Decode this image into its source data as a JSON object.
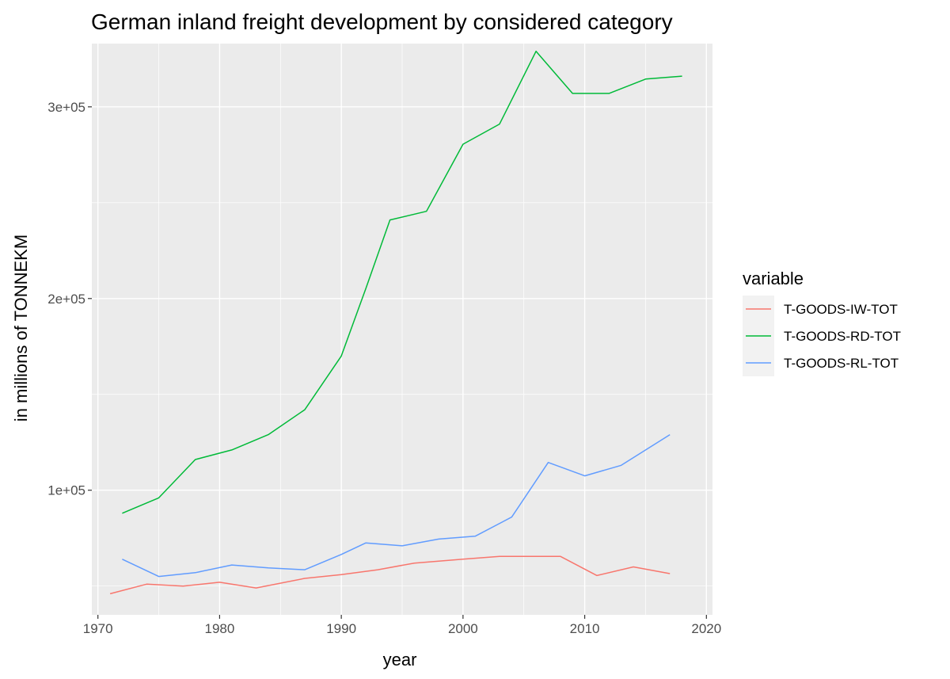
{
  "chart_data": {
    "type": "line",
    "title": "German inland freight development by considered category",
    "xlabel": "year",
    "ylabel": "in millions of TONNEKM",
    "xlim": [
      1969.5,
      2020.5
    ],
    "ylim": [
      35000,
      333000
    ],
    "x_ticks": [
      1970,
      1980,
      1990,
      2000,
      2010,
      2020
    ],
    "x_tick_labels": [
      "1970",
      "1980",
      "1990",
      "2000",
      "2010",
      "2020"
    ],
    "y_ticks": [
      100000,
      200000,
      300000
    ],
    "y_tick_labels": [
      "1e+05",
      "2e+05",
      "3e+05"
    ],
    "legend": {
      "title": "variable",
      "position": "right"
    },
    "series": [
      {
        "name": "T-GOODS-IW-TOT",
        "color": "#F8766D",
        "x": [
          1971,
          1974,
          1977,
          1980,
          1983,
          1987,
          1990,
          1993,
          1996,
          2000,
          2003,
          2005,
          2008,
          2011,
          2014,
          2017
        ],
        "y": [
          46000,
          51000,
          50000,
          52000,
          49000,
          54000,
          56000,
          58500,
          62000,
          64000,
          65500,
          65500,
          65500,
          55500,
          60000,
          56500
        ]
      },
      {
        "name": "T-GOODS-RD-TOT",
        "color": "#00BA38",
        "x": [
          1972,
          1975,
          1978,
          1981,
          1984,
          1987,
          1990,
          1992,
          1994,
          1997,
          2000,
          2003,
          2006,
          2009,
          2012,
          2015,
          2018
        ],
        "y": [
          88000,
          96000,
          116000,
          121000,
          129000,
          142000,
          170000,
          205000,
          241000,
          245500,
          280500,
          291000,
          329000,
          307000,
          307000,
          314500,
          316000
        ]
      },
      {
        "name": "T-GOODS-RL-TOT",
        "color": "#619CFF",
        "x": [
          1972,
          1975,
          1978,
          1981,
          1984,
          1987,
          1990,
          1992,
          1995,
          1998,
          2001,
          2004,
          2007,
          2010,
          2013,
          2017
        ],
        "y": [
          64000,
          55000,
          57000,
          61000,
          59500,
          58500,
          66500,
          72500,
          71000,
          74500,
          76000,
          86000,
          114500,
          107500,
          113000,
          129000
        ]
      }
    ]
  }
}
